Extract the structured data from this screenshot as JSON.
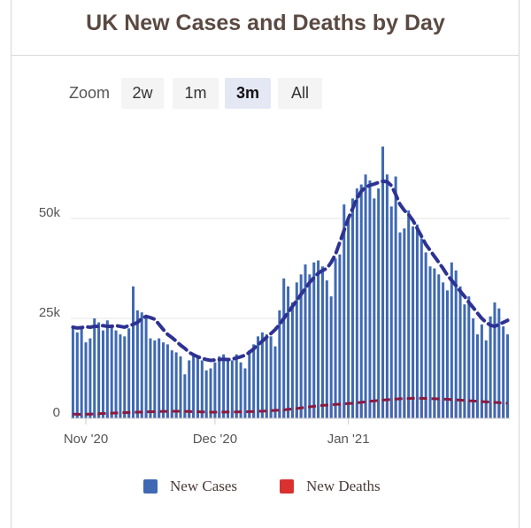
{
  "title": "UK New Cases and Deaths by Day",
  "zoom": {
    "label": "Zoom",
    "buttons": [
      "2w",
      "1m",
      "3m",
      "All"
    ],
    "active": "3m"
  },
  "colors": {
    "cases": "#3f69b3",
    "cases_avg": "#2e3292",
    "deaths": "#d8312f",
    "deaths_avg": "#8b1a3e",
    "grid": "#e6e6e6"
  },
  "chart_data": {
    "type": "bar",
    "x_start": "2020-10-29",
    "x_tick_labels": [
      {
        "label": "Nov '20",
        "date": "2020-11-01"
      },
      {
        "label": "Dec '20",
        "date": "2020-12-01"
      },
      {
        "label": "Jan '21",
        "date": "2021-01-01"
      }
    ],
    "y_tick_labels": [
      "0",
      "25k",
      "50k"
    ],
    "y_ticks": [
      0,
      25000,
      50000
    ],
    "ylim": [
      0,
      70000
    ],
    "legend": {
      "placement": "bottom-center"
    },
    "grid": true,
    "series": [
      {
        "name": "New Cases",
        "kind": "bar",
        "values": [
          23000,
          21500,
          22500,
          19000,
          20000,
          25000,
          24000,
          22000,
          24500,
          23500,
          22000,
          21000,
          20500,
          22500,
          33000,
          27000,
          26500,
          25500,
          20000,
          19500,
          20000,
          19000,
          18500,
          17000,
          16500,
          15500,
          11000,
          14500,
          16000,
          15500,
          14500,
          12000,
          12500,
          14000,
          15500,
          16000,
          15000,
          14500,
          16000,
          14000,
          12500,
          17000,
          18500,
          20500,
          21500,
          21000,
          20500,
          18000,
          27000,
          35000,
          33000,
          29000,
          34000,
          36000,
          38500,
          36000,
          39000,
          39500,
          38000,
          34500,
          30500,
          40000,
          41000,
          53500,
          50000,
          55000,
          57500,
          58500,
          61000,
          59500,
          55000,
          57500,
          68000,
          61000,
          53000,
          60500,
          46500,
          47500,
          52000,
          48000,
          48500,
          45000,
          41500,
          38000,
          37500,
          36000,
          34000,
          32000,
          39000,
          37000,
          33000,
          28500,
          30500,
          25000,
          21000,
          23500,
          19500,
          25500,
          29000,
          27500,
          23000,
          21000
        ]
      },
      {
        "name": "New Cases 7-day average",
        "kind": "line",
        "values": [
          22800,
          22600,
          22700,
          22900,
          22800,
          23000,
          23000,
          23200,
          23000,
          23000,
          23200,
          23000,
          22800,
          23200,
          23500,
          24000,
          25000,
          25500,
          25200,
          24800,
          23500,
          22200,
          21000,
          20200,
          19300,
          18300,
          17500,
          16500,
          15900,
          15400,
          15000,
          14700,
          14500,
          14600,
          14700,
          14800,
          14700,
          14800,
          15100,
          15400,
          15800,
          16500,
          17400,
          18400,
          19300,
          20300,
          21200,
          22200,
          23500,
          25000,
          26500,
          28000,
          29500,
          31000,
          32500,
          34000,
          35200,
          36300,
          37000,
          37500,
          39000,
          41000,
          44000,
          47000,
          50000,
          52500,
          55000,
          56800,
          57800,
          58300,
          58600,
          59000,
          59300,
          59200,
          58200,
          56000,
          53500,
          52000,
          51000,
          49500,
          47500,
          45500,
          43500,
          42000,
          40500,
          39000,
          37500,
          35800,
          34500,
          33200,
          31800,
          30500,
          29000,
          27700,
          26300,
          25000,
          24000,
          23300,
          23000,
          23500,
          24000,
          24500
        ]
      },
      {
        "name": "New Deaths",
        "kind": "bar",
        "values": [
          300,
          280,
          260,
          300,
          320,
          340,
          350,
          370,
          380,
          390,
          400,
          410,
          420,
          430,
          440,
          450,
          460,
          470,
          480,
          490,
          500,
          500,
          500,
          510,
          510,
          500,
          480,
          470,
          470,
          460,
          450,
          440,
          440,
          440,
          450,
          450,
          460,
          460,
          470,
          470,
          480,
          490,
          500,
          520,
          540,
          560,
          580,
          600,
          620,
          650,
          700,
          740,
          780,
          820,
          860,
          900,
          950,
          980,
          1000,
          1020,
          1040,
          1060,
          1080,
          1100,
          1120,
          1150,
          1180,
          1200,
          1250,
          1300,
          1320,
          1350,
          1380,
          1400,
          1420,
          1430,
          1440,
          1450,
          1440,
          1430,
          1420,
          1410,
          1400,
          1390,
          1380,
          1360,
          1340,
          1320,
          1300,
          1280,
          1260,
          1240,
          1220,
          1200,
          1180,
          1160,
          1140,
          1120,
          1100,
          1080,
          1060,
          1040
        ]
      },
      {
        "name": "New Deaths 7-day average",
        "kind": "line",
        "values": [
          300,
          290,
          285,
          290,
          300,
          315,
          330,
          345,
          360,
          372,
          384,
          396,
          408,
          420,
          430,
          440,
          450,
          460,
          470,
          480,
          488,
          494,
          498,
          502,
          504,
          502,
          496,
          488,
          480,
          470,
          460,
          452,
          446,
          444,
          446,
          449,
          453,
          457,
          462,
          467,
          473,
          481,
          490,
          502,
          516,
          532,
          549,
          567,
          588,
          612,
          640,
          671,
          705,
          744,
          783,
          823,
          862,
          896,
          925,
          950,
          973,
          994,
          1014,
          1037,
          1060,
          1086,
          1114,
          1143,
          1180,
          1220,
          1250,
          1278,
          1306,
          1330,
          1352,
          1375,
          1395,
          1410,
          1420,
          1427,
          1430,
          1428,
          1421,
          1411,
          1401,
          1390,
          1377,
          1360,
          1342,
          1322,
          1300,
          1280,
          1260,
          1240,
          1220,
          1200,
          1180,
          1160,
          1140,
          1120,
          1100,
          1080
        ]
      }
    ]
  },
  "legend_items": [
    {
      "label": "New Cases"
    },
    {
      "label": "New Deaths"
    }
  ]
}
